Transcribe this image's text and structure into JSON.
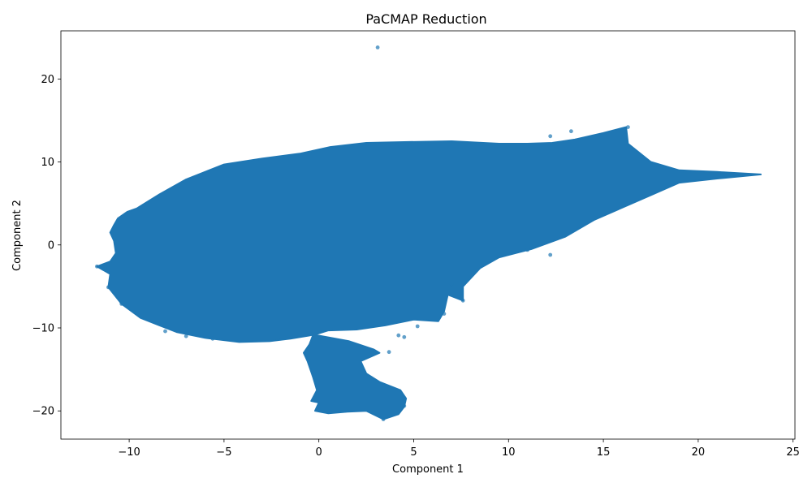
{
  "chart_data": {
    "type": "scatter",
    "title": "PaCMAP Reduction",
    "xlabel": "Component 1",
    "ylabel": "Component 2",
    "xlim": [
      -13.6,
      25.1
    ],
    "ylim": [
      -23.4,
      25.8
    ],
    "xticks": [
      -10,
      -5,
      0,
      5,
      10,
      15,
      20,
      25
    ],
    "yticks": [
      -20,
      -10,
      0,
      10,
      20
    ],
    "xtick_labels": [
      "−10",
      "−5",
      "0",
      "5",
      "10",
      "15",
      "20",
      "25"
    ],
    "ytick_labels": [
      "−20",
      "−10",
      "0",
      "10",
      "20"
    ],
    "grid": false,
    "legend": "none",
    "color": "#1f77b4",
    "marker_opacity": 0.7,
    "main_cluster_outline": [
      [
        -9.6,
        4.4
      ],
      [
        -8.4,
        6.1
      ],
      [
        -7.0,
        7.9
      ],
      [
        -5.0,
        9.7
      ],
      [
        -3.0,
        10.4
      ],
      [
        -1.0,
        11.0
      ],
      [
        0.6,
        11.8
      ],
      [
        2.5,
        12.3
      ],
      [
        4.5,
        12.4
      ],
      [
        7.0,
        12.5
      ],
      [
        9.5,
        12.2
      ],
      [
        11.0,
        12.2
      ],
      [
        12.3,
        12.3
      ],
      [
        13.5,
        12.7
      ],
      [
        15.0,
        13.5
      ],
      [
        16.2,
        14.2
      ],
      [
        16.3,
        12.2
      ],
      [
        17.5,
        10.0
      ],
      [
        19.0,
        9.0
      ],
      [
        21.0,
        8.8
      ],
      [
        23.3,
        8.5
      ],
      [
        21.0,
        8.0
      ],
      [
        19.0,
        7.5
      ],
      [
        17.5,
        6.0
      ],
      [
        16.3,
        4.8
      ],
      [
        14.5,
        3.0
      ],
      [
        13.0,
        1.0
      ],
      [
        11.2,
        -0.5
      ],
      [
        9.5,
        -1.5
      ],
      [
        8.5,
        -2.8
      ],
      [
        7.6,
        -5.0
      ],
      [
        7.6,
        -6.7
      ],
      [
        6.8,
        -6.0
      ],
      [
        6.6,
        -8.0
      ],
      [
        6.3,
        -9.2
      ],
      [
        5.0,
        -9.0
      ],
      [
        3.5,
        -9.7
      ],
      [
        2.0,
        -10.2
      ],
      [
        0.5,
        -10.3
      ],
      [
        -0.2,
        -10.8
      ],
      [
        -1.5,
        -11.3
      ],
      [
        -2.6,
        -11.6
      ],
      [
        -4.2,
        -11.7
      ],
      [
        -6.0,
        -11.2
      ],
      [
        -7.5,
        -10.5
      ],
      [
        -8.4,
        -9.7
      ],
      [
        -9.4,
        -8.8
      ],
      [
        -10.4,
        -7.1
      ],
      [
        -11.1,
        -5.1
      ],
      [
        -11.0,
        -3.5
      ],
      [
        -11.7,
        -2.6
      ],
      [
        -11.0,
        -2.0
      ],
      [
        -10.7,
        -1.0
      ],
      [
        -10.8,
        0.5
      ],
      [
        -11.0,
        1.5
      ],
      [
        -10.8,
        2.4
      ],
      [
        -10.6,
        3.2
      ],
      [
        -10.1,
        4.0
      ]
    ],
    "lower_cluster_outline": [
      [
        -0.3,
        -10.8
      ],
      [
        1.6,
        -11.6
      ],
      [
        2.9,
        -12.6
      ],
      [
        3.2,
        -13.0
      ],
      [
        2.2,
        -14.0
      ],
      [
        2.5,
        -15.5
      ],
      [
        3.2,
        -16.5
      ],
      [
        4.3,
        -17.5
      ],
      [
        4.6,
        -18.5
      ],
      [
        4.5,
        -19.5
      ],
      [
        4.2,
        -20.4
      ],
      [
        3.4,
        -21.0
      ],
      [
        2.5,
        -20.0
      ],
      [
        1.5,
        -20.1
      ],
      [
        0.5,
        -20.3
      ],
      [
        -0.2,
        -20.0
      ],
      [
        0.0,
        -19.0
      ],
      [
        -0.4,
        -18.8
      ],
      [
        -0.1,
        -17.5
      ],
      [
        -0.3,
        -16.0
      ],
      [
        -0.6,
        -14.0
      ],
      [
        -0.8,
        -13.0
      ],
      [
        -0.5,
        -12.0
      ]
    ],
    "stray_points": [
      [
        3.1,
        23.8
      ],
      [
        -11.7,
        -2.6
      ],
      [
        -11.4,
        -2.6
      ],
      [
        -11.1,
        -2.7
      ],
      [
        13.3,
        13.7
      ],
      [
        12.2,
        13.1
      ],
      [
        16.3,
        14.2
      ],
      [
        -8.1,
        -10.4
      ],
      [
        -10.4,
        -7.1
      ],
      [
        -11.1,
        -5.1
      ],
      [
        -7.0,
        -11.0
      ],
      [
        -5.6,
        -11.3
      ],
      [
        7.6,
        -6.7
      ],
      [
        6.6,
        -8.3
      ],
      [
        4.2,
        -10.9
      ],
      [
        4.5,
        -11.1
      ],
      [
        7.0,
        -4.7
      ],
      [
        12.2,
        -1.2
      ],
      [
        11.0,
        -0.6
      ],
      [
        3.4,
        -21.0
      ],
      [
        4.5,
        -19.4
      ],
      [
        3.7,
        -12.9
      ],
      [
        5.2,
        -9.8
      ],
      [
        -0.2,
        -10.8
      ]
    ]
  }
}
